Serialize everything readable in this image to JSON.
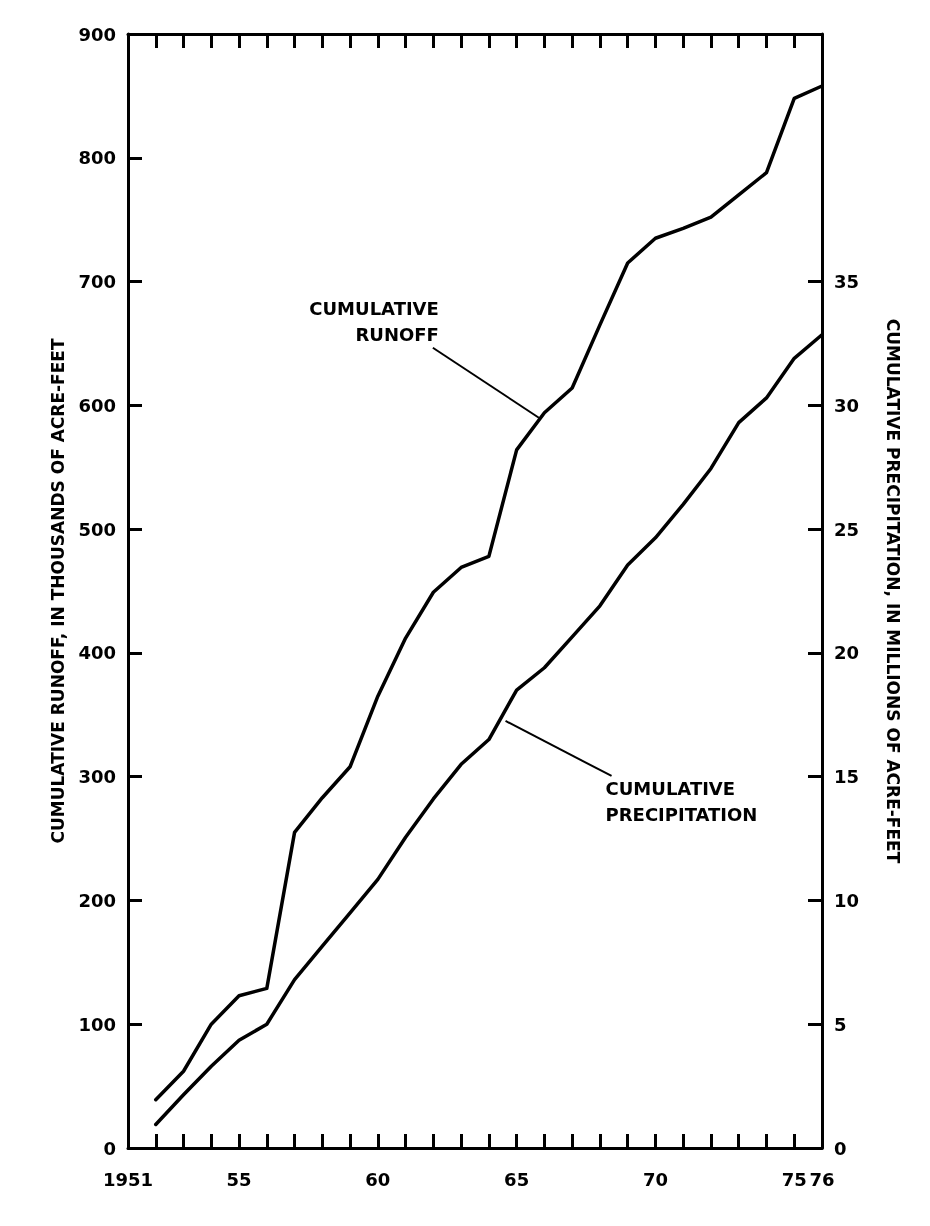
{
  "chart_data": {
    "type": "line",
    "xlabel": null,
    "ylabel": "CUMULATIVE RUNOFF, IN THOUSANDS OF ACRE-FEET",
    "y2label": "CUMULATIVE PRECIPITATION, IN MILLIONS OF ACRE-FEET",
    "x": [
      1952,
      1953,
      1954,
      1955,
      1956,
      1957,
      1958,
      1959,
      1960,
      1961,
      1962,
      1963,
      1964,
      1965,
      1966,
      1967,
      1968,
      1969,
      1970,
      1971,
      1972,
      1973,
      1974,
      1975,
      1976
    ],
    "series": [
      {
        "color": "#000000",
        "values": [
          39,
          62,
          100,
          123,
          129,
          255,
          283,
          308,
          365,
          412,
          449,
          469,
          478,
          564,
          594,
          614,
          665,
          715,
          735,
          743,
          752,
          770,
          788,
          848,
          858
        ]
      },
      {
        "color": "#000000",
        "axis": "y2",
        "values": [
          0.95,
          2.15,
          3.3,
          4.35,
          5.0,
          6.8,
          8.15,
          9.5,
          10.85,
          12.55,
          14.1,
          15.5,
          16.5,
          18.5,
          19.4,
          20.65,
          21.9,
          23.55,
          24.65,
          26.0,
          27.45,
          29.3,
          30.3,
          31.9,
          32.85
        ]
      }
    ],
    "annotations": [
      {
        "text": "CUMULATIVE\nRUNOFF",
        "x": 1965.8,
        "y": 590
      },
      {
        "text": "CUMULATIVE\nPRECIPITATION",
        "x": 1964.6,
        "y": 345
      }
    ],
    "xlim": [
      1951,
      1976
    ],
    "xticks": [
      {
        "value": 1951,
        "label": "1951"
      },
      {
        "value": 1952,
        "label": null
      },
      {
        "value": 1953,
        "label": null
      },
      {
        "value": 1954,
        "label": null
      },
      {
        "value": 1955,
        "label": "55"
      },
      {
        "value": 1956,
        "label": null
      },
      {
        "value": 1957,
        "label": null
      },
      {
        "value": 1958,
        "label": null
      },
      {
        "value": 1959,
        "label": null
      },
      {
        "value": 1960,
        "label": "60"
      },
      {
        "value": 1961,
        "label": null
      },
      {
        "value": 1962,
        "label": null
      },
      {
        "value": 1963,
        "label": null
      },
      {
        "value": 1964,
        "label": null
      },
      {
        "value": 1965,
        "label": "65"
      },
      {
        "value": 1966,
        "label": null
      },
      {
        "value": 1967,
        "label": null
      },
      {
        "value": 1968,
        "label": null
      },
      {
        "value": 1969,
        "label": null
      },
      {
        "value": 1970,
        "label": "70"
      },
      {
        "value": 1971,
        "label": null
      },
      {
        "value": 1972,
        "label": null
      },
      {
        "value": 1973,
        "label": null
      },
      {
        "value": 1974,
        "label": null
      },
      {
        "value": 1975,
        "label": "75"
      },
      {
        "value": 1976,
        "label": "76"
      }
    ],
    "ylim": [
      0,
      900
    ],
    "yticks": [
      0,
      100,
      200,
      300,
      400,
      500,
      600,
      700,
      800,
      900
    ],
    "y2lim": [
      0,
      45
    ],
    "y2ticks": [
      0,
      5,
      10,
      15,
      20,
      25,
      30,
      35
    ],
    "grid": false,
    "marker": "none",
    "line_style": "solid"
  }
}
